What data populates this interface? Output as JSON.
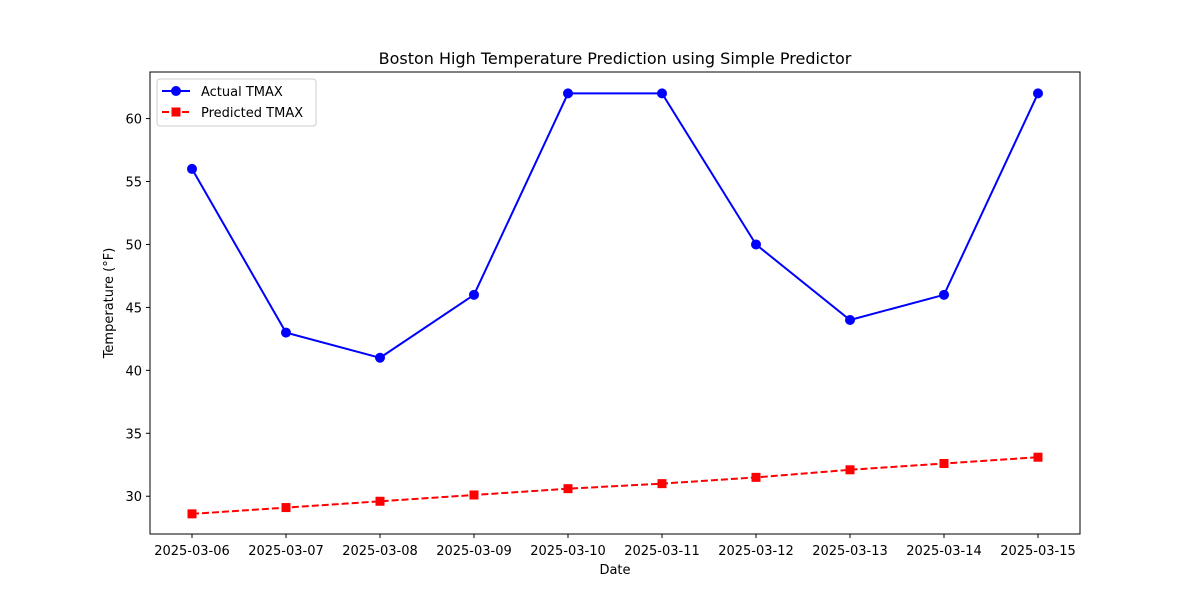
{
  "chart_data": {
    "type": "line",
    "title": "Boston High Temperature Prediction using Simple Predictor",
    "xlabel": "Date",
    "ylabel": "Temperature (°F)",
    "x": [
      "2025-03-06",
      "2025-03-07",
      "2025-03-08",
      "2025-03-09",
      "2025-03-10",
      "2025-03-11",
      "2025-03-12",
      "2025-03-13",
      "2025-03-14",
      "2025-03-15"
    ],
    "ylim": [
      27.0,
      63.7
    ],
    "yticks": [
      30,
      35,
      40,
      45,
      50,
      55,
      60
    ],
    "grid": false,
    "legend_position": "top-left",
    "series": [
      {
        "name": "Actual TMAX",
        "values": [
          56,
          43,
          41,
          46,
          62,
          62,
          50,
          44,
          46,
          62
        ],
        "color": "#0000ff",
        "line_style": "solid",
        "marker": "circle"
      },
      {
        "name": "Predicted TMAX",
        "values": [
          28.6,
          29.1,
          29.6,
          30.1,
          30.6,
          31.0,
          31.5,
          32.1,
          32.6,
          33.1
        ],
        "color": "#ff0000",
        "line_style": "dashed",
        "marker": "square"
      }
    ]
  }
}
